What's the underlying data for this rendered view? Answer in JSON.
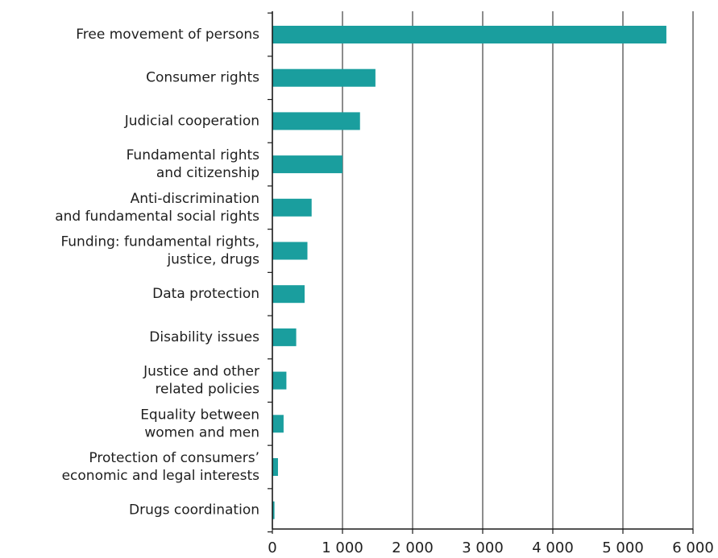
{
  "chart_data": {
    "type": "bar",
    "orientation": "horizontal",
    "categories": [
      [
        "Free movement of persons"
      ],
      [
        "Consumer rights"
      ],
      [
        "Judicial cooperation"
      ],
      [
        "Fundamental rights",
        "and citizenship"
      ],
      [
        "Anti-discrimination",
        "and fundamental social rights"
      ],
      [
        "Funding: fundamental rights,",
        "justice, drugs"
      ],
      [
        "Data protection"
      ],
      [
        "Disability issues"
      ],
      [
        "Justice and other",
        "related policies"
      ],
      [
        "Equality between",
        "women and men"
      ],
      [
        "Protection of consumers’",
        "economic and legal interests"
      ],
      [
        "Drugs coordination"
      ]
    ],
    "values": [
      5620,
      1470,
      1250,
      1000,
      560,
      500,
      460,
      340,
      200,
      160,
      80,
      30
    ],
    "xlim": [
      0,
      6000
    ],
    "ticks": [
      0,
      1000,
      2000,
      3000,
      4000,
      5000,
      6000
    ],
    "tick_labels": [
      "0",
      "1 000",
      "2 000",
      "3 000",
      "4 000",
      "5 000",
      "6 000"
    ],
    "grid": true,
    "bar_color": "#1a9e9e",
    "title": "",
    "xlabel": "",
    "ylabel": ""
  }
}
